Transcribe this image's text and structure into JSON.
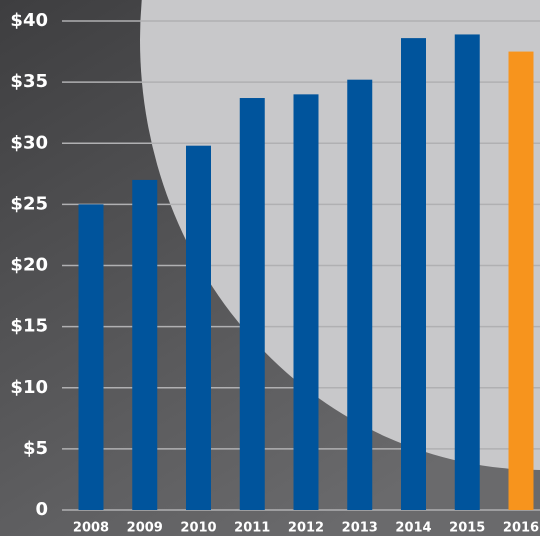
{
  "chart_data": {
    "type": "bar",
    "categories": [
      "2008",
      "2009",
      "2010",
      "2011",
      "2012",
      "2013",
      "2014",
      "2015",
      "2016"
    ],
    "values": [
      25,
      27,
      29.8,
      33.7,
      34,
      35.2,
      38.6,
      38.9,
      37.5
    ],
    "colors": [
      "#00549c",
      "#00549c",
      "#00549c",
      "#00549c",
      "#00549c",
      "#00549c",
      "#00549c",
      "#00549c",
      "#f7941d"
    ],
    "ylim": [
      0,
      40
    ],
    "yticks": [
      0,
      {
        "value": 5,
        "label": "$5"
      },
      {
        "value": 10,
        "label": "$10"
      },
      {
        "value": 15,
        "label": "$15"
      },
      {
        "value": 20,
        "label": "$20"
      },
      {
        "value": 25,
        "label": "$25"
      },
      {
        "value": 30,
        "label": "$30"
      },
      {
        "value": 35,
        "label": "$35"
      },
      {
        "value": 40,
        "label": "$40"
      }
    ],
    "grid": true
  }
}
